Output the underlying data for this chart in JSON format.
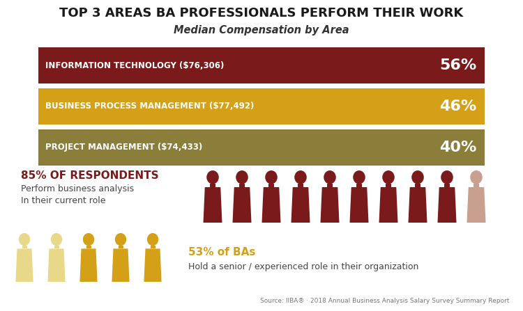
{
  "title_line1": "TOP 3 AREAS BA PROFESSIONALS PERFORM THEIR WORK",
  "title_line2": "Median Compensation by Area",
  "bars": [
    {
      "label": "INFORMATION TECHNOLOGY ($76,306)",
      "pct": "56%",
      "color": "#7B1A1A"
    },
    {
      "label": "BUSINESS PROCESS MANAGEMENT ($77,492)",
      "pct": "46%",
      "color": "#D4A017"
    },
    {
      "label": "PROJECT MANAGEMENT ($74,433)",
      "pct": "40%",
      "color": "#8B7D3A"
    }
  ],
  "stat1_bold": "85% OF RESPONDENTS",
  "stat1_line1": "Perform business analysis",
  "stat1_line2": "In their current role",
  "stat1_color": "#7B1A1A",
  "stat1_total_icons": 10,
  "stat1_filled_icons": 9,
  "stat1_filled_color": "#7B1A1A",
  "stat1_empty_color": "#C9A090",
  "stat2_bold": "53% of BAs",
  "stat2_line1": "Hold a senior / experienced role in their organization",
  "stat2_color": "#D4A017",
  "stat2_total_icons": 5,
  "stat2_light_color": "#E8D88A",
  "stat2_dark_color": "#D4A017",
  "source_text": "Source: IIBA® · 2018 Annual Business Analysis Salary Survey Summary Report",
  "bg_color": "#FFFFFF"
}
